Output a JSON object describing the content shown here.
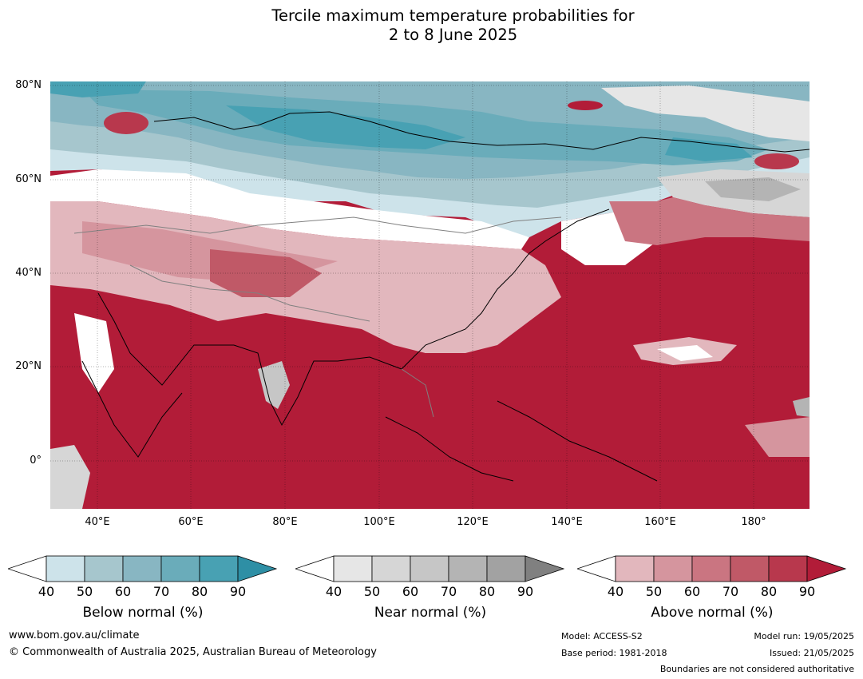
{
  "title_line1": "Tercile maximum temperature probabilities for",
  "title_line2": "2 to 8 June 2025",
  "lat_labels": [
    "80°N",
    "60°N",
    "40°N",
    "20°N",
    "0°"
  ],
  "lon_labels": [
    "40°E",
    "60°E",
    "80°E",
    "100°E",
    "120°E",
    "140°E",
    "160°E",
    "180°"
  ],
  "colorbars": [
    {
      "title": "Below normal (%)",
      "ticks": [
        "40",
        "50",
        "60",
        "70",
        "80",
        "90"
      ],
      "colors": [
        "#cde3ea",
        "#a6c6cd",
        "#88b6c2",
        "#6aacba",
        "#48a1b3",
        "#2e8fa5"
      ]
    },
    {
      "title": "Near normal (%)",
      "ticks": [
        "40",
        "50",
        "60",
        "70",
        "80",
        "90"
      ],
      "colors": [
        "#e6e6e6",
        "#d6d6d6",
        "#c6c6c6",
        "#b4b4b4",
        "#a2a2a2",
        "#808080"
      ]
    },
    {
      "title": "Above normal (%)",
      "ticks": [
        "40",
        "50",
        "60",
        "70",
        "80",
        "90"
      ],
      "colors": [
        "#e2b7bd",
        "#d5959e",
        "#ca7581",
        "#c05967",
        "#b8384d",
        "#b21c38"
      ]
    }
  ],
  "footer": {
    "website": "www.bom.gov.au/climate",
    "copyright": "© Commonwealth of Australia 2025, Australian Bureau of Meteorology",
    "model": "Model: ACCESS-S2",
    "base_period": "Base period: 1981-2018",
    "model_run": "Model run: 19/05/2025",
    "issued": "Issued: 21/05/2025",
    "disclaimer": "Boundaries are not considered authoritative"
  }
}
